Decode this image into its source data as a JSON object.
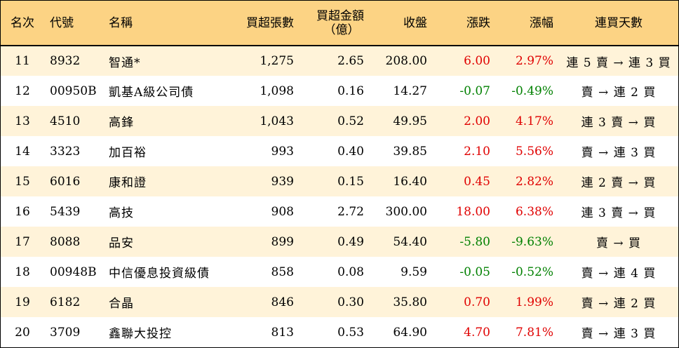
{
  "columns": {
    "rank": "名次",
    "code": "代號",
    "name": "名稱",
    "net_buy_shares": "買超張數",
    "net_buy_amount_line1": "買超金額",
    "net_buy_amount_line2": "（億）",
    "close": "收盤",
    "change": "漲跌",
    "change_pct": "漲幅",
    "buy_streak": "連買天數"
  },
  "colors": {
    "header_bg": "#fcd384",
    "odd_row_bg": "#fff3d9",
    "up": "#e00000",
    "down": "#008000"
  },
  "rows": [
    {
      "rank": "11",
      "code": "8932",
      "name": "智通*",
      "shares": "1,275",
      "amount": "2.65",
      "close": "208.00",
      "change": "6.00",
      "pct": "2.97%",
      "days": "連 5 賣 → 連 3 買",
      "dir": "up"
    },
    {
      "rank": "12",
      "code": "00950B",
      "name": "凱基A級公司債",
      "shares": "1,098",
      "amount": "0.16",
      "close": "14.27",
      "change": "-0.07",
      "pct": "-0.49%",
      "days": "賣 → 連 2 買",
      "dir": "down"
    },
    {
      "rank": "13",
      "code": "4510",
      "name": "高鋒",
      "shares": "1,043",
      "amount": "0.52",
      "close": "49.95",
      "change": "2.00",
      "pct": "4.17%",
      "days": "連 3 賣 → 買",
      "dir": "up"
    },
    {
      "rank": "14",
      "code": "3323",
      "name": "加百裕",
      "shares": "993",
      "amount": "0.40",
      "close": "39.85",
      "change": "2.10",
      "pct": "5.56%",
      "days": "賣 → 連 3 買",
      "dir": "up"
    },
    {
      "rank": "15",
      "code": "6016",
      "name": "康和證",
      "shares": "939",
      "amount": "0.15",
      "close": "16.40",
      "change": "0.45",
      "pct": "2.82%",
      "days": "連 2 賣 → 買",
      "dir": "up"
    },
    {
      "rank": "16",
      "code": "5439",
      "name": "高技",
      "shares": "908",
      "amount": "2.72",
      "close": "300.00",
      "change": "18.00",
      "pct": "6.38%",
      "days": "連 3 賣 → 買",
      "dir": "up"
    },
    {
      "rank": "17",
      "code": "8088",
      "name": "品安",
      "shares": "899",
      "amount": "0.49",
      "close": "54.40",
      "change": "-5.80",
      "pct": "-9.63%",
      "days": "賣 → 買",
      "dir": "down"
    },
    {
      "rank": "18",
      "code": "00948B",
      "name": "中信優息投資級債",
      "shares": "858",
      "amount": "0.08",
      "close": "9.59",
      "change": "-0.05",
      "pct": "-0.52%",
      "days": "賣 → 連 4 買",
      "dir": "down"
    },
    {
      "rank": "19",
      "code": "6182",
      "name": "合晶",
      "shares": "846",
      "amount": "0.30",
      "close": "35.80",
      "change": "0.70",
      "pct": "1.99%",
      "days": "賣 → 連 2 買",
      "dir": "up"
    },
    {
      "rank": "20",
      "code": "3709",
      "name": "鑫聯大投控",
      "shares": "813",
      "amount": "0.53",
      "close": "64.90",
      "change": "4.70",
      "pct": "7.81%",
      "days": "賣 → 連 3 買",
      "dir": "up"
    }
  ]
}
